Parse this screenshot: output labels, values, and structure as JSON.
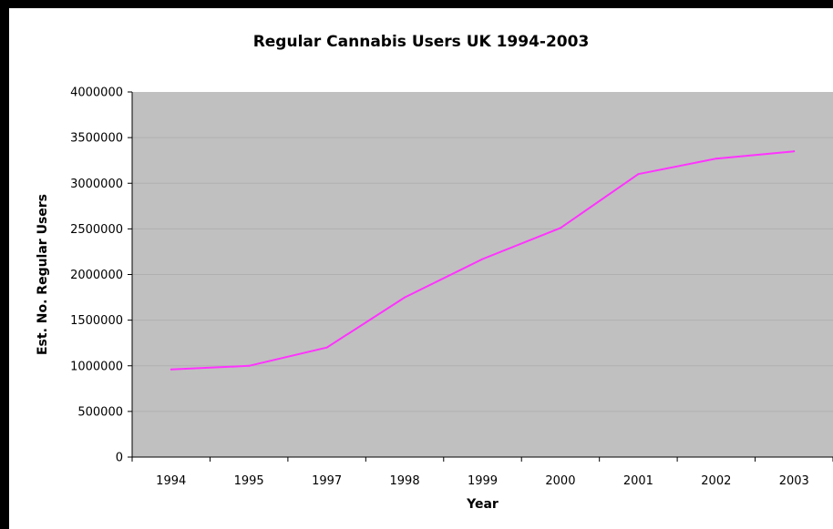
{
  "chart_data": {
    "type": "line",
    "title": "Regular Cannabis Users UK 1994-2003",
    "xlabel": "Year",
    "ylabel": "Est. No. Regular Users",
    "categories": [
      "1994",
      "1995",
      "1997",
      "1998",
      "1999",
      "2000",
      "2001",
      "2002",
      "2003"
    ],
    "series": [
      {
        "values": [
          960000,
          1000000,
          1200000,
          1750000,
          2170000,
          2510000,
          3100000,
          3270000,
          3350000
        ]
      }
    ],
    "yticks": [
      "0",
      "500000",
      "1000000",
      "1500000",
      "2000000",
      "2500000",
      "3000000",
      "3500000",
      "4000000"
    ],
    "ylim": [
      0,
      4000000
    ],
    "grid": true,
    "legend": "none",
    "colors": {
      "line": "#ff33ff",
      "plot_bg": "#c0c0c0",
      "border": "#000000"
    }
  }
}
